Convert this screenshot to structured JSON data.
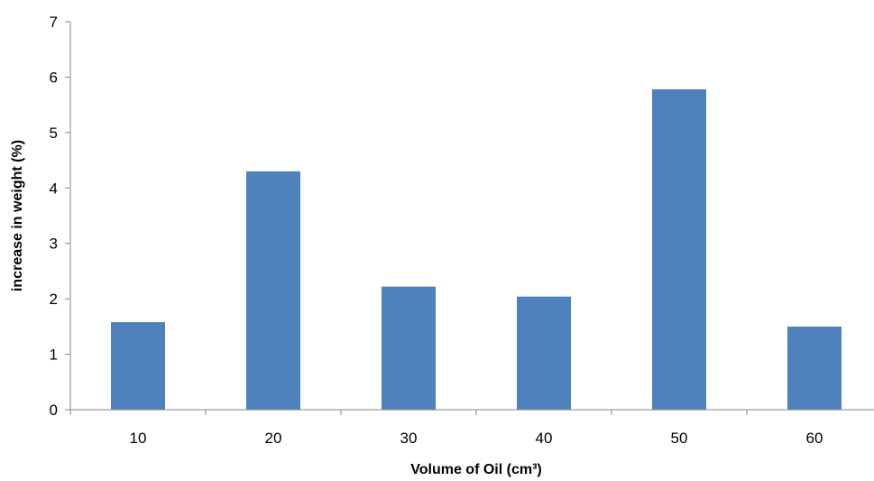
{
  "chart_data": {
    "type": "bar",
    "title": "",
    "xlabel": "Volume of Oil (cm³)",
    "ylabel": "increase in weight (%)",
    "categories": [
      "10",
      "20",
      "30",
      "40",
      "50",
      "60"
    ],
    "values": [
      1.58,
      4.3,
      2.22,
      2.04,
      5.78,
      1.5
    ],
    "ylim": [
      0,
      7
    ],
    "yticks": [
      "0",
      "1",
      "2",
      "3",
      "4",
      "5",
      "6",
      "7"
    ],
    "grid": false,
    "legend": "none",
    "bar_color": "#4F81BD"
  }
}
